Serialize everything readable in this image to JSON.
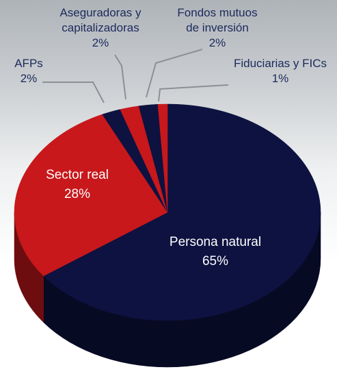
{
  "chart_data": {
    "type": "pie",
    "categories": [
      "Persona natural",
      "Sector real",
      "AFPs",
      "Aseguradoras y capitalizadoras",
      "Fondos mutuos de inversión",
      "Fiduciarias y FICs"
    ],
    "values": [
      65,
      28,
      2,
      2,
      2,
      1
    ],
    "value_labels": [
      "65%",
      "28%",
      "2%",
      "2%",
      "2%",
      "1%"
    ],
    "colors": [
      "#0d1240",
      "#c8181b",
      "#0d1240",
      "#c8181b",
      "#0d1240",
      "#c8181b"
    ]
  }
}
